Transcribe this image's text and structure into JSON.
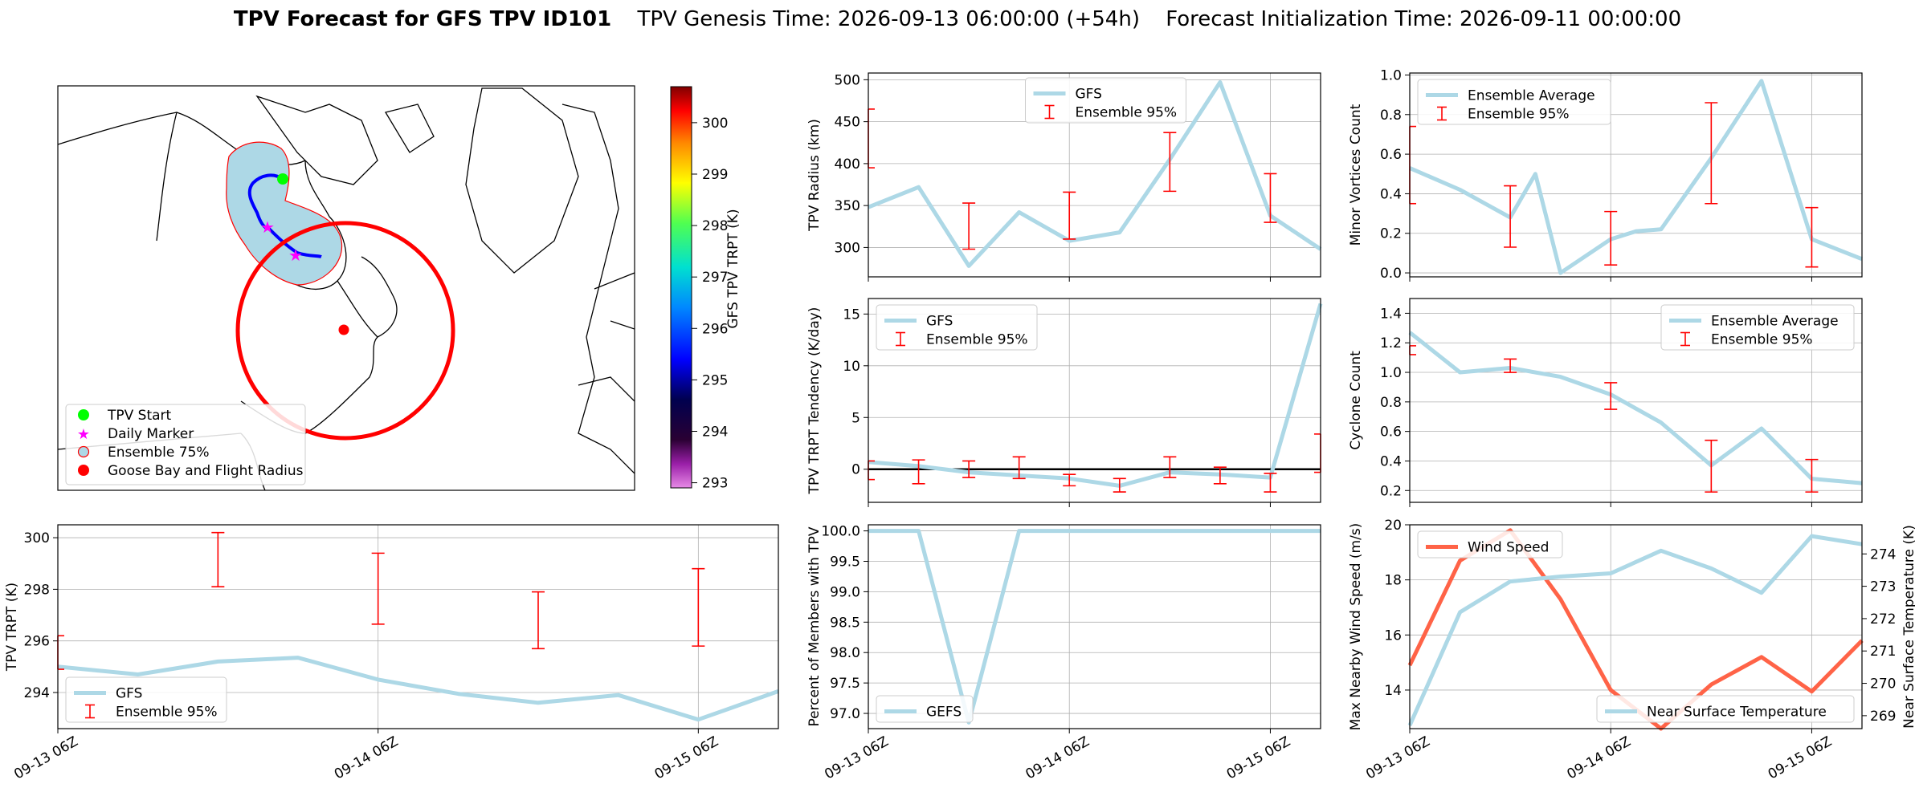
{
  "title": {
    "bold": "TPV Forecast for GFS TPV ID101",
    "genesis": "TPV Genesis Time: 2026-09-13 06:00:00 (+54h)",
    "init": "Forecast Initialization Time: 2026-09-11 00:00:00"
  },
  "colors": {
    "gfs_line": "#add8e6",
    "errorbar": "#ff0000",
    "wind_line": "#ff6347",
    "temp_axis": "#4169e1",
    "grid": "#b0b0b0"
  },
  "time_ticks": [
    "09-13 06Z",
    "09-14 06Z",
    "09-15 06Z"
  ],
  "map": {
    "colorbar": {
      "label": "GFS TPV TRPT (K)",
      "ticks": [
        "300",
        "299",
        "298",
        "297",
        "296",
        "295",
        "294",
        "293"
      ],
      "range": [
        292.9,
        300.7
      ]
    },
    "legend": [
      "TPV Start",
      "Daily Marker",
      "Ensemble 75%",
      "Goose Bay and Flight Radius"
    ]
  },
  "chart_data": [
    {
      "id": "trpt",
      "type": "line",
      "ylabel": "TPV TRPT (K)",
      "x_hours": [
        0,
        6,
        12,
        18,
        24,
        30,
        36,
        42,
        48,
        54
      ],
      "xlim": [
        0,
        54
      ],
      "ylim": [
        292.6,
        300.5
      ],
      "yticks": [
        "294",
        "296",
        "298",
        "300"
      ],
      "series": [
        {
          "name": "GFS",
          "values": [
            295.0,
            294.7,
            295.2,
            295.35,
            294.5,
            293.95,
            293.6,
            293.9,
            292.95,
            294.05
          ]
        }
      ],
      "errorbars": {
        "name": "Ensemble 95%",
        "x_hours": [
          0,
          12,
          24,
          36,
          48
        ],
        "low": [
          294.9,
          298.1,
          296.65,
          295.7,
          295.8
        ],
        "high": [
          296.2,
          300.2,
          299.4,
          297.9,
          298.8
        ]
      },
      "legend": "lower-left"
    },
    {
      "id": "radius",
      "type": "line",
      "ylabel": "TPV Radius (km)",
      "x_hours": [
        0,
        6,
        12,
        18,
        24,
        30,
        36,
        42,
        48,
        54
      ],
      "xlim": [
        0,
        54
      ],
      "ylim": [
        265,
        508
      ],
      "yticks": [
        "300",
        "350",
        "400",
        "450",
        "500"
      ],
      "series": [
        {
          "name": "GFS",
          "values": [
            348,
            372,
            278,
            342,
            308,
            318,
            405,
            497,
            338,
            298
          ]
        }
      ],
      "errorbars": {
        "name": "Ensemble 95%",
        "x_hours": [
          0,
          12,
          24,
          36,
          48
        ],
        "low": [
          395,
          298,
          310,
          367,
          330
        ],
        "high": [
          465,
          353,
          366,
          437,
          388
        ]
      },
      "legend": "upper-center"
    },
    {
      "id": "tendency",
      "type": "line",
      "ylabel": "TPV TRPT Tendency (K/day)",
      "x_hours": [
        0,
        6,
        12,
        18,
        24,
        30,
        36,
        42,
        48,
        54
      ],
      "xlim": [
        0,
        54
      ],
      "ylim": [
        -3.2,
        16.5
      ],
      "yticks": [
        "0",
        "5",
        "10",
        "15"
      ],
      "zero_line": true,
      "series": [
        {
          "name": "GFS",
          "values": [
            0.7,
            0.3,
            -0.3,
            -0.6,
            -0.9,
            -1.6,
            -0.3,
            -0.5,
            -0.8,
            16.0
          ]
        }
      ],
      "errorbars": {
        "name": "Ensemble 95%",
        "x_hours": [
          0,
          6,
          12,
          18,
          24,
          30,
          36,
          42,
          48,
          54
        ],
        "low": [
          -1.0,
          -1.4,
          -0.8,
          -0.9,
          -1.6,
          -2.2,
          -0.8,
          -1.4,
          -2.2,
          -0.3
        ],
        "high": [
          0.8,
          0.9,
          0.8,
          1.2,
          -0.5,
          -0.9,
          1.2,
          0.2,
          -0.4,
          3.4
        ]
      },
      "legend": "upper-left"
    },
    {
      "id": "members",
      "type": "line",
      "ylabel": "Percent of Members with TPV",
      "x_hours": [
        0,
        6,
        12,
        18,
        24,
        30,
        36,
        42,
        48,
        54
      ],
      "xlim": [
        0,
        54
      ],
      "ylim": [
        96.75,
        100.1
      ],
      "yticks": [
        "97.0",
        "97.5",
        "98.0",
        "98.5",
        "99.0",
        "99.5",
        "100.0"
      ],
      "series": [
        {
          "name": "GEFS",
          "values": [
            100,
            100,
            96.85,
            100,
            100,
            100,
            100,
            100,
            100,
            100
          ]
        }
      ],
      "legend": "lower-left"
    },
    {
      "id": "minor",
      "type": "line",
      "ylabel": "Minor Vortices Count",
      "x_hours": [
        0,
        6,
        12,
        15,
        18,
        24,
        27,
        30,
        36,
        42,
        48,
        54
      ],
      "xlim": [
        0,
        54
      ],
      "ylim": [
        -0.02,
        1.01
      ],
      "yticks": [
        "0.0",
        "0.2",
        "0.4",
        "0.6",
        "0.8",
        "1.0"
      ],
      "series": [
        {
          "name": "Ensemble Average",
          "values": [
            0.53,
            0.42,
            0.28,
            0.5,
            0.0,
            0.17,
            0.21,
            0.22,
            0.58,
            0.97,
            0.17,
            0.07
          ]
        }
      ],
      "errorbars": {
        "name": "Ensemble 95%",
        "x_hours": [
          0,
          12,
          24,
          36,
          48
        ],
        "low": [
          0.35,
          0.13,
          0.04,
          0.35,
          0.03
        ],
        "high": [
          0.74,
          0.44,
          0.31,
          0.86,
          0.33
        ]
      },
      "legend": "upper-left"
    },
    {
      "id": "cyclone",
      "type": "line",
      "ylabel": "Cyclone Count",
      "x_hours": [
        0,
        6,
        12,
        18,
        24,
        30,
        36,
        42,
        48,
        54
      ],
      "xlim": [
        0,
        54
      ],
      "ylim": [
        0.12,
        1.5
      ],
      "yticks": [
        "0.2",
        "0.4",
        "0.6",
        "0.8",
        "1.0",
        "1.2",
        "1.4"
      ],
      "series": [
        {
          "name": "Ensemble Average",
          "values": [
            1.27,
            1.0,
            1.03,
            0.97,
            0.85,
            0.66,
            0.37,
            0.62,
            0.28,
            0.25
          ]
        }
      ],
      "errorbars": {
        "name": "Ensemble 95%",
        "x_hours": [
          0,
          12,
          24,
          36,
          48
        ],
        "low": [
          1.12,
          1.0,
          0.75,
          0.19,
          0.19
        ],
        "high": [
          1.18,
          1.09,
          0.93,
          0.54,
          0.41
        ]
      },
      "legend": "upper-right"
    },
    {
      "id": "wind",
      "type": "line",
      "ylabel": "Max Nearby Wind Speed (m/s)",
      "ylabel2": "Near Surface Temperature (K)",
      "x_hours": [
        0,
        6,
        12,
        18,
        24,
        30,
        36,
        42,
        48,
        54
      ],
      "xlim": [
        0,
        54
      ],
      "ylim": [
        12.6,
        20.0
      ],
      "ylim2": [
        268.6,
        274.9
      ],
      "yticks": [
        "14",
        "16",
        "18",
        "20"
      ],
      "yticks2": [
        "269",
        "270",
        "271",
        "272",
        "273",
        "274"
      ],
      "series": [
        {
          "name": "Wind Speed",
          "values": [
            14.9,
            18.7,
            19.8,
            17.3,
            14.0,
            12.6,
            14.2,
            15.2,
            13.95,
            15.8
          ],
          "axis": "left"
        },
        {
          "name": "Near Surface Temperature",
          "values": [
            268.7,
            272.2,
            273.15,
            273.3,
            273.4,
            274.1,
            273.55,
            272.8,
            274.55,
            274.3
          ],
          "axis": "right"
        }
      ],
      "legends": [
        "upper-left",
        "lower-right"
      ]
    }
  ]
}
